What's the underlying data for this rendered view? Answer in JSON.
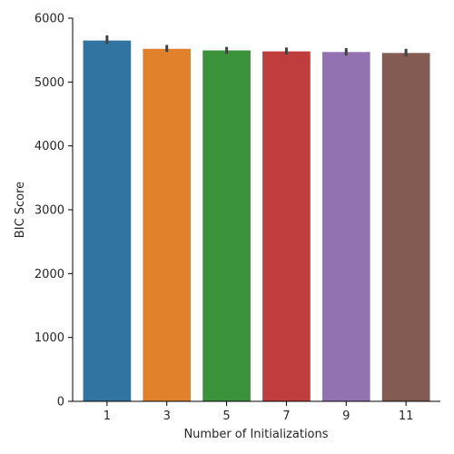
{
  "chart_data": {
    "type": "bar",
    "xlabel": "Number of Initializations",
    "ylabel": "BIC Score",
    "ylim": [
      0,
      6000
    ],
    "yticks": [
      0,
      1000,
      2000,
      3000,
      4000,
      5000,
      6000
    ],
    "categories": [
      "1",
      "3",
      "5",
      "7",
      "9",
      "11"
    ],
    "values": [
      5650,
      5520,
      5495,
      5480,
      5470,
      5455
    ],
    "error_bars": [
      [
        5600,
        5730
      ],
      [
        5470,
        5580
      ],
      [
        5440,
        5550
      ],
      [
        5430,
        5540
      ],
      [
        5415,
        5530
      ],
      [
        5405,
        5520
      ]
    ],
    "colors": [
      "#3274a1",
      "#e1812c",
      "#3a923a",
      "#c03d3e",
      "#9372b2",
      "#845b53"
    ],
    "grid": false,
    "legend": "none"
  }
}
